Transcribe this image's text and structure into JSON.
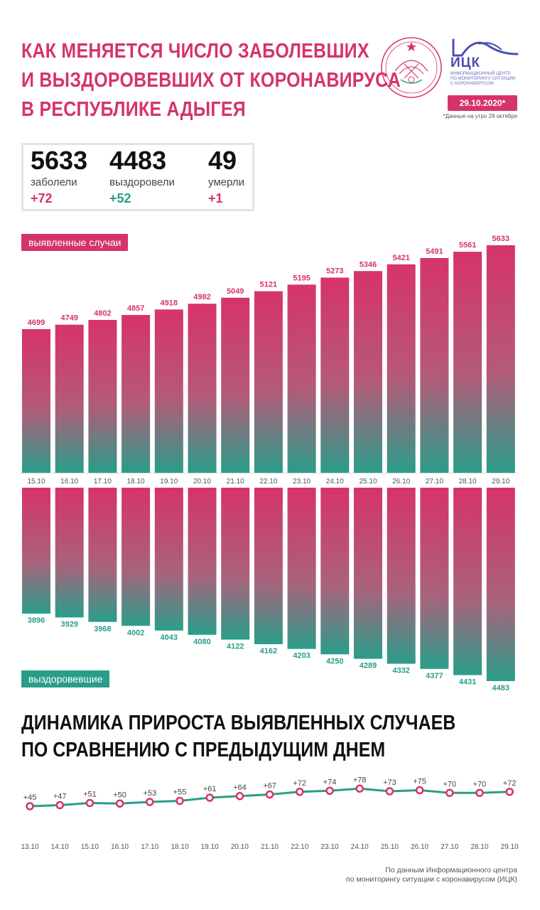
{
  "header": {
    "title_lines": [
      "КАК МЕНЯЕТСЯ ЧИСЛО ЗАБОЛЕВШИХ",
      "И ВЫЗДОРОВЕВШИХ ОТ КОРОНАВИРУСА",
      "В РЕСПУБЛИКЕ АДЫГЕЯ"
    ],
    "logo_name": "ИЦК",
    "logo_sub": [
      "ИНФОРМАЦИОННЫЙ ЦЕНТР",
      "ПО МОНИТОРИНГУ СИТУАЦИИ",
      "С КОРОНАВИРУСОМ"
    ],
    "date": "29.10.2020*",
    "date_note": "*Данные на утро 29 октября"
  },
  "stats": [
    {
      "value": "5633",
      "label": "заболели",
      "delta": "+72",
      "color": "#d6336c"
    },
    {
      "value": "4483",
      "label": "выздоровели",
      "delta": "+52",
      "color": "#2a9d8a"
    },
    {
      "value": "49",
      "label": "умерли",
      "delta": "+1",
      "color": "#d6336c"
    }
  ],
  "labels": {
    "cases": "выявленные случаи",
    "recovered": "выздоровевшие"
  },
  "subtitle_lines": [
    "ДИНАМИКА ПРИРОСТА ВЫЯВЛЕННЫХ СЛУЧАЕВ",
    "ПО СРАВНЕНИЮ С ПРЕДЫДУЩИМ ДНЕМ"
  ],
  "footer_lines": [
    "По данным Информационного центра",
    "по мониторингу ситуации с коронавирусом (ИЦК)"
  ],
  "colors": {
    "pink": "#d6336c",
    "teal": "#2a9d8a"
  },
  "chart_data": [
    {
      "type": "bar",
      "categories": [
        "15.10",
        "16.10",
        "17.10",
        "18.10",
        "19.10",
        "20.10",
        "21.10",
        "22.10",
        "23.10",
        "24.10",
        "25.10",
        "26.10",
        "27.10",
        "28.10",
        "29.10"
      ],
      "series": [
        {
          "name": "выявленные случаи",
          "values": [
            4699,
            4749,
            4802,
            4857,
            4918,
            4982,
            5049,
            5121,
            5195,
            5273,
            5346,
            5421,
            5491,
            5561,
            5633
          ]
        },
        {
          "name": "выздоровевшие",
          "values": [
            3896,
            3929,
            3968,
            4002,
            4043,
            4080,
            4122,
            4162,
            4203,
            4250,
            4289,
            4332,
            4377,
            4431,
            4483
          ]
        }
      ]
    },
    {
      "type": "line",
      "categories": [
        "13.10",
        "14.10",
        "15.10",
        "16.10",
        "17.10",
        "18.10",
        "19.10",
        "20.10",
        "21.10",
        "22.10",
        "23.10",
        "24.10",
        "25.10",
        "26.10",
        "27.10",
        "28.10",
        "29.10"
      ],
      "values": [
        45,
        47,
        51,
        50,
        53,
        55,
        61,
        64,
        67,
        72,
        74,
        78,
        73,
        75,
        70,
        70,
        72
      ],
      "value_labels": [
        "+45",
        "+47",
        "+51",
        "+50",
        "+53",
        "+55",
        "+61",
        "+64",
        "+67",
        "+72",
        "+74",
        "+78",
        "+73",
        "+75",
        "+70",
        "+70",
        "+72"
      ]
    }
  ]
}
